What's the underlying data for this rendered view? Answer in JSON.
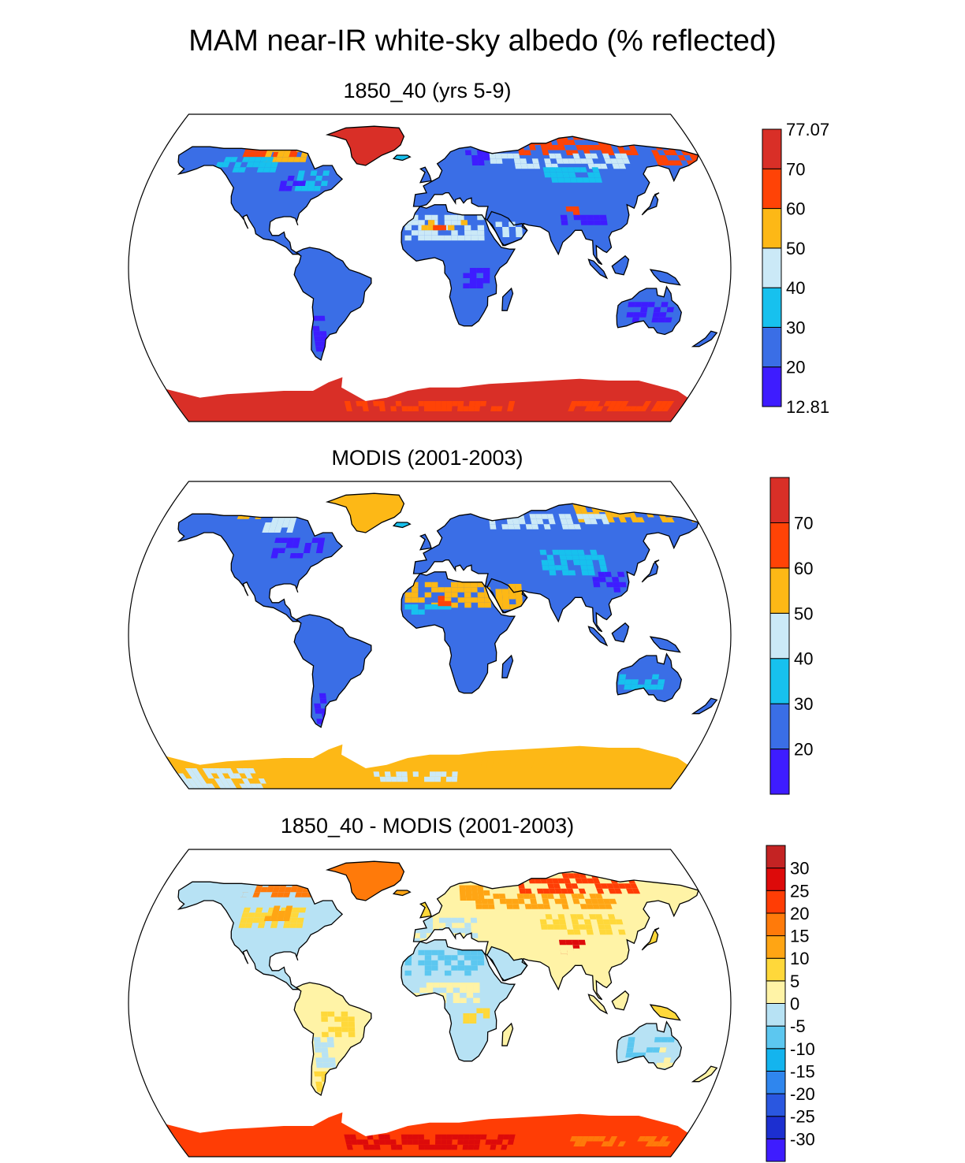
{
  "title": "MAM near-IR white-sky albedo (% reflected)",
  "panels": [
    {
      "title": "1850_40 (yrs 5-9)",
      "colorbar": {
        "colors": [
          "#3e1cff",
          "#3a6ee6",
          "#17c1ee",
          "#cbe9f7",
          "#fdb816",
          "#ff4306",
          "#d92f27"
        ],
        "labels": [
          "12.81",
          "20",
          "30",
          "40",
          "50",
          "60",
          "70",
          "77.07"
        ],
        "label_mode": "edges"
      }
    },
    {
      "title": "MODIS (2001-2003)",
      "colorbar": {
        "colors": [
          "#3e1cff",
          "#3a6ee6",
          "#17c1ee",
          "#cbe9f7",
          "#fdb816",
          "#ff4306",
          "#d92f27"
        ],
        "labels": [
          "20",
          "30",
          "40",
          "50",
          "60",
          "70"
        ],
        "label_mode": "interior"
      }
    },
    {
      "title": "1850_40 - MODIS (2001-2003)",
      "colorbar": {
        "colors": [
          "#3e1cff",
          "#1c2fd0",
          "#2a57e0",
          "#2f86ee",
          "#14b4ee",
          "#5cc7f0",
          "#b7e2f4",
          "#fff3a6",
          "#ffd83a",
          "#ffa514",
          "#ff7a0a",
          "#ff3d05",
          "#dd0a0a",
          "#c42323"
        ],
        "labels": [
          "-30",
          "-25",
          "-20",
          "-15",
          "-10",
          "-5",
          "0",
          "5",
          "10",
          "15",
          "20",
          "25",
          "30"
        ],
        "label_mode": "interior"
      }
    }
  ],
  "map_data": {
    "projection": "Robinson",
    "variable": "near-IR white-sky albedo",
    "season": "MAM",
    "units": "% reflected"
  }
}
